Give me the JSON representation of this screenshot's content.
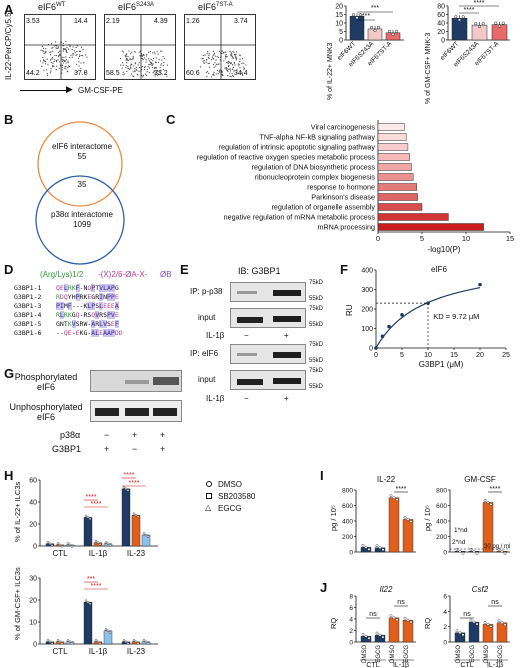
{
  "panel_letters": {
    "A": "A",
    "B": "B",
    "C": "C",
    "D": "D",
    "E": "E",
    "F": "F",
    "G": "G",
    "H": "H",
    "I": "I",
    "J": "J"
  },
  "panelA": {
    "y_axis_label": "IL-22-PerCP/Cy5.5",
    "x_axis_label": "GM-CSF-PE",
    "plots": [
      {
        "title": "eIF6",
        "sup": "WT",
        "q_ul": "3.53",
        "q_ur": "14.4",
        "q_ll": "44.2",
        "q_lr": "37.8"
      },
      {
        "title": "eIF6",
        "sup": "S243A",
        "q_ul": "2.19",
        "q_ur": "4.39",
        "q_ll": "58.5",
        "q_lr": "33.2"
      },
      {
        "title": "eIF6",
        "sup": "7ST-A",
        "q_ul": "1.26",
        "q_ur": "3.74",
        "q_ll": "60.6",
        "q_lr": "34.4"
      }
    ]
  },
  "panelB": {
    "top_label": "eIF6 interactome",
    "top_count": "55",
    "overlap": "35",
    "bottom_label": "p38α interactome",
    "bottom_count": "1099"
  },
  "panelC": {
    "xlabel": "-log10(P)",
    "terms": [
      "Viral carcinogenesis",
      "TNF-alpha NF-kB signaling pathway",
      "regulation of intrinsic apoptotic signaling pathway",
      "regulation of reactive oxygen species metabolic process",
      "regulation of DNA biosynthetic process",
      "ribonucleoprotein complex biogenesis",
      "response to hormone",
      "Parkinson's disease",
      "regulation of organelle assembly",
      "negative regulation of mRNA metabolic process",
      "mRNA processing"
    ],
    "values": [
      3.0,
      3.2,
      3.4,
      3.6,
      3.8,
      4.0,
      4.4,
      4.5,
      5.0,
      8.0,
      12.0
    ],
    "xticks": [
      "0",
      "5",
      "10",
      "15"
    ]
  },
  "panelD": {
    "motif_a": "(Arg/Lys)1/2",
    "motif_b": "-(X)2/6-ØA-X-",
    "motif_c": "ØB",
    "rows": [
      {
        "name": "G3BP1-1",
        "seq": "QELRKF-NQPTVLAPG"
      },
      {
        "name": "G3BP1-2",
        "seq": "RDQYHPRKEGRINPPE"
      },
      {
        "name": "G3BP1-3",
        "seq": "PIMF---KLPSLEEEA"
      },
      {
        "name": "G3BP1-4",
        "seq": "RLRKGQ-RSQVRSPVE"
      },
      {
        "name": "G3BP1-5",
        "seq": "GNTKVSRW-ARLVSEF"
      },
      {
        "name": "G3BP1-6",
        "seq": "--QE-EKG-ALEAAPDD"
      }
    ]
  },
  "panelE": {
    "title": "IB: G3BP1",
    "rows": [
      "IP: p-p38",
      "input",
      "IP: eIF6",
      "input"
    ],
    "kd": [
      "75kD",
      "55kD",
      "75kD",
      "55kD",
      "75kD",
      "55kD",
      "75kD",
      "55kD"
    ],
    "treatment": "IL-1β",
    "signs": [
      "−",
      "+"
    ]
  },
  "panelF": {
    "title": "eIF6",
    "ylabel": "RU",
    "xlabel": "G3BP1 (μM)",
    "kd_text": "KD = 9.72 μM",
    "yticks": [
      "0",
      "100",
      "200",
      "300",
      "400"
    ],
    "xticks": [
      "0",
      "5",
      "10",
      "15",
      "20",
      "25"
    ]
  },
  "panelG": {
    "phos_label": "Phosphorylated eIF6",
    "unphos_label": "Unphosphorylated eIF6",
    "row1": "p38α",
    "row2": "G3BP1",
    "row1_signs": [
      "−",
      "+",
      "+"
    ],
    "row2_signs": [
      "+",
      "−",
      "+"
    ]
  },
  "panelH": {
    "legend": [
      "DMSO",
      "SB203580",
      "EGCG"
    ],
    "ylabel_top": "% of IL-22+ ILC3s",
    "ylabel_bottom": "% of GM-CSF+ ILC3s",
    "categories": [
      "CTL",
      "IL-1β",
      "IL-23"
    ],
    "stars": [
      "****",
      "****",
      "****",
      "****",
      "***",
      "****"
    ],
    "yticks_top": [
      "0",
      "20",
      "40",
      "60"
    ],
    "yticks_bottom": [
      "0",
      "10",
      "20",
      "30"
    ]
  },
  "panelI": {
    "left_title": "IL-22",
    "right_title": "GM-CSF",
    "ylabel": "pg / 10⁵",
    "yticks": [
      "0",
      "100",
      "200",
      "300",
      "400"
    ],
    "stars": "****",
    "nd1": "1*nd",
    "nd2": "2*nd",
    "limit": "30 pg / ml"
  },
  "panelJ": {
    "left_title": "Il22",
    "right_title": "Csf2",
    "ylabel": "RQ",
    "ns": "ns",
    "xlabels": [
      "DMSO",
      "EGCG",
      "DMSO",
      "EGCG"
    ],
    "groups": [
      "CTL",
      "IL-1β"
    ],
    "yticks_left": [
      "0",
      "2",
      "4",
      "6",
      "8"
    ],
    "yticks_right": [
      "0",
      "2",
      "4",
      "6"
    ]
  },
  "colors": {
    "navy": "#1f3b63",
    "pink": "#f3c8c8",
    "salmon": "#e86a6a",
    "orange": "#e0601b",
    "light_blue": "#8ec1e8",
    "venn_orange": "#f08a3c",
    "venn_blue": "#2e5fa8"
  },
  "chart_data": [
    {
      "type": "bar",
      "title": "",
      "ylabel": "% of IL-22+ MNK3",
      "categories": [
        "eIF6WT",
        "eIF6S243A",
        "eIF6 7ST-A"
      ],
      "values": [
        14.0,
        6.5,
        4.2
      ],
      "ylim": [
        0,
        20
      ]
    },
    {
      "type": "bar",
      "title": "",
      "ylabel": "% of GM-CSF+ MNK-3",
      "categories": [
        "eIF6WT",
        "eIF6S243A",
        "eIF6 7ST-A"
      ],
      "values": [
        51,
        35,
        36
      ],
      "ylim": [
        0,
        80
      ]
    },
    {
      "type": "bar",
      "title": "",
      "xlabel": "-log10(P)",
      "categories": [
        "Viral carcinogenesis",
        "TNF-alpha NF-kB signaling pathway",
        "regulation of intrinsic apoptotic signaling pathway",
        "regulation of reactive oxygen species metabolic process",
        "regulation of DNA biosynthetic process",
        "ribonucleoprotein complex biogenesis",
        "response to hormone",
        "Parkinson's disease",
        "regulation of organelle assembly",
        "negative regulation of mRNA metabolic process",
        "mRNA processing"
      ],
      "values": [
        3.0,
        3.2,
        3.4,
        3.6,
        3.8,
        4.0,
        4.4,
        4.5,
        5.0,
        8.0,
        12.0
      ]
    },
    {
      "type": "scatter",
      "title": "eIF6",
      "xlabel": "G3BP1 (μM)",
      "ylabel": "RU",
      "x": [
        0,
        1.25,
        2.5,
        5,
        10,
        20
      ],
      "y": [
        0,
        60,
        110,
        170,
        230,
        325
      ],
      "xlim": [
        0,
        25
      ],
      "ylim": [
        0,
        400
      ]
    },
    {
      "type": "bar",
      "ylabel": "% of IL-22+ ILC3s",
      "categories": [
        "CTL",
        "IL-1β",
        "IL-23"
      ],
      "series": [
        {
          "name": "DMSO",
          "values": [
            2,
            26,
            52
          ]
        },
        {
          "name": "SB203580",
          "values": [
            1,
            3,
            28
          ]
        },
        {
          "name": "EGCG",
          "values": [
            1,
            2,
            10
          ]
        }
      ],
      "ylim": [
        0,
        60
      ]
    },
    {
      "type": "bar",
      "ylabel": "% of GM-CSF+ ILC3s",
      "categories": [
        "CTL",
        "IL-1β",
        "IL-23"
      ],
      "series": [
        {
          "name": "DMSO",
          "values": [
            1,
            19,
            1
          ]
        },
        {
          "name": "SB203580",
          "values": [
            1,
            1,
            1
          ]
        },
        {
          "name": "EGCG",
          "values": [
            1,
            6,
            1
          ]
        }
      ],
      "ylim": [
        0,
        30
      ]
    },
    {
      "type": "bar",
      "title": "IL-22",
      "ylabel": "pg / 10⁵",
      "categories": [
        "CTL DMSO",
        "CTL EGCG",
        "IL-1β DMSO",
        "IL-1β EGCG"
      ],
      "values": [
        60,
        55,
        700,
        420
      ],
      "ylim": [
        0,
        800
      ]
    },
    {
      "type": "bar",
      "title": "GM-CSF",
      "ylabel": "pg / 10⁵",
      "categories": [
        "CTL DMSO",
        "CTL EGCG",
        "IL-1β DMSO",
        "IL-1β EGCG"
      ],
      "values": [
        5,
        5,
        640,
        10
      ],
      "ylim": [
        0,
        800
      ]
    },
    {
      "type": "bar",
      "title": "Il22",
      "ylabel": "RQ",
      "categories": [
        "CTL DMSO",
        "CTL EGCG",
        "IL-1β DMSO",
        "IL-1β EGCG"
      ],
      "values": [
        1.0,
        1.2,
        4.2,
        3.8
      ],
      "ylim": [
        0,
        8
      ]
    },
    {
      "type": "bar",
      "title": "Csf2",
      "ylabel": "RQ",
      "categories": [
        "CTL DMSO",
        "CTL EGCG",
        "IL-1β DMSO",
        "IL-1β EGCG"
      ],
      "values": [
        1.2,
        2.6,
        2.3,
        2.5
      ],
      "ylim": [
        0,
        6
      ]
    }
  ]
}
